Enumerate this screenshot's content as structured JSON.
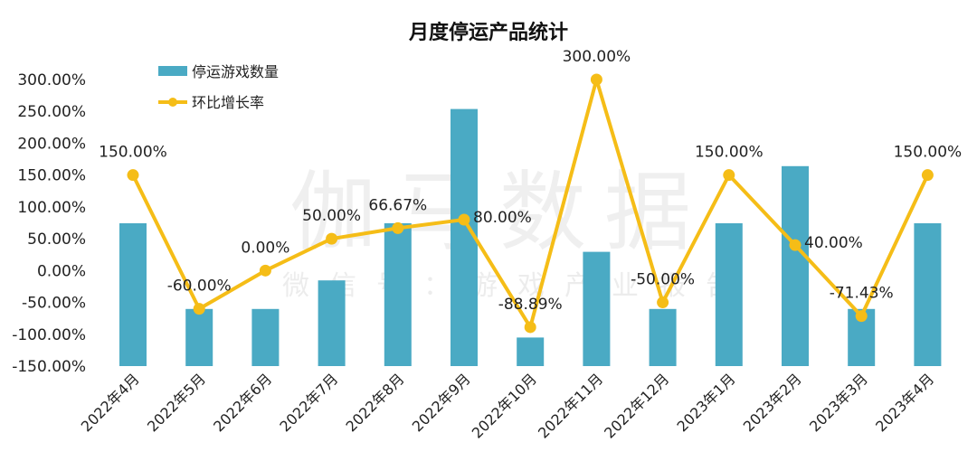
{
  "chart_data": {
    "type": "bar+line",
    "title": "月度停运产品统计",
    "categories": [
      "2022年4月",
      "2022年5月",
      "2022年6月",
      "2022年7月",
      "2022年8月",
      "2022年9月",
      "2022年10月",
      "2022年11月",
      "2022年12月",
      "2023年1月",
      "2023年2月",
      "2023年3月",
      "2023年4月"
    ],
    "series": [
      {
        "name": "停运游戏数量",
        "type": "bar",
        "color": "#4aaac4",
        "values": [
          5,
          2,
          2,
          3,
          5,
          9,
          1,
          4,
          2,
          5,
          7,
          2,
          5
        ]
      },
      {
        "name": "环比增长率",
        "type": "line",
        "color": "#f5bd17",
        "values": [
          150,
          -60,
          0,
          50,
          66.67,
          80,
          -88.89,
          300,
          -50,
          150,
          40,
          -71.43,
          150
        ],
        "labels": [
          "150.00%",
          "-60.00%",
          "0.00%",
          "50.00%",
          "66.67%",
          "80.00%",
          "-88.89%",
          "300.00%",
          "-50.00%",
          "150.00%",
          "40.00%",
          "-71.43%",
          "150.00%"
        ]
      }
    ],
    "yticks": [
      "300.00%",
      "250.00%",
      "200.00%",
      "150.00%",
      "100.00%",
      "50.00%",
      "0.00%",
      "-50.00%",
      "-100.00%",
      "-150.00%"
    ],
    "ylim": [
      -150,
      300
    ],
    "legend": "top-left",
    "grid": false
  },
  "watermark": {
    "main": "伽马数据",
    "sub": "微信号：游戏产业报告"
  }
}
